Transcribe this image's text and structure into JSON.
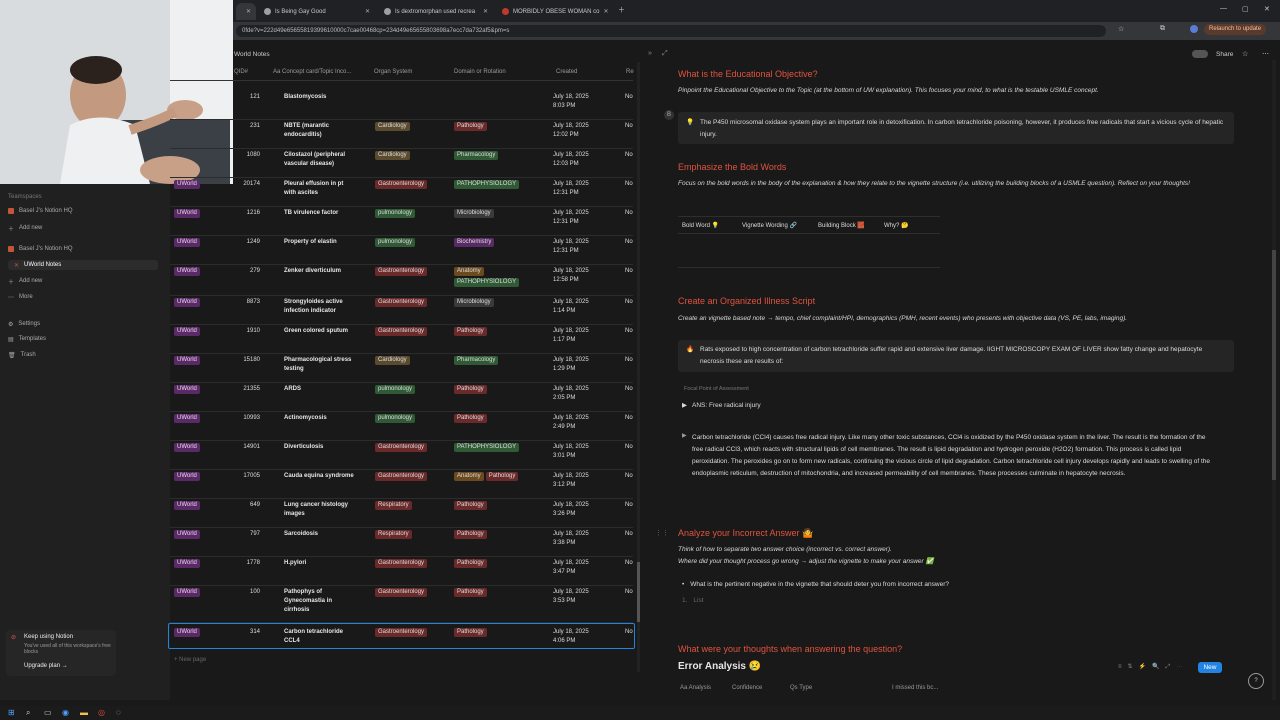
{
  "browser": {
    "tabs": [
      {
        "label": "Is Being Gay Good"
      },
      {
        "label": "Is dextromorphan used recrea"
      },
      {
        "label": "MORBIDLY OBESE WOMAN co"
      }
    ],
    "url": "0fde?v=222d49e65655819399610000c7cae00468cp=234d49e65655803698a7ecc7da732af5&pm=s",
    "relaunch": "Relaunch to update"
  },
  "sidebar": {
    "section": "Teamspaces",
    "items": [
      {
        "label": "Basel J's Notion HQ"
      },
      {
        "label": "Add new"
      },
      {
        "label": "Basel J's Notion HQ"
      },
      {
        "label": "UWorld Notes"
      },
      {
        "label": "Add new"
      },
      {
        "label": "More"
      },
      {
        "label": "Settings"
      },
      {
        "label": "Templates"
      },
      {
        "label": "Trash"
      }
    ],
    "upsell_title": "Keep using Notion",
    "upsell_text": "You've used all of this workspace's free blocks",
    "upsell_link": "Upgrade plan →"
  },
  "table": {
    "title": "World Notes",
    "headers": [
      "QID#",
      "Aa Concept card/Topic Inco...",
      "Organ System",
      "Domain or Rotation",
      "Created",
      "Re"
    ],
    "new_page": "+ New page",
    "rows": [
      {
        "src": "",
        "qid": "121",
        "card": "Blastomycosis",
        "organ": "",
        "domain": [],
        "date": "July 18, 2025 8:03 PM",
        "re": "No"
      },
      {
        "src": "",
        "qid": "231",
        "card": "NBTE (marantic endocarditis)",
        "organ": "Cardiology",
        "domain": [
          "Pathology"
        ],
        "date": "July 18, 2025 12:02 PM",
        "re": "No"
      },
      {
        "src": "",
        "qid": "1080",
        "card": "Cilostazol (peripheral vascular disease)",
        "organ": "Cardiology",
        "domain": [
          "Pharmacology"
        ],
        "date": "July 18, 2025 12:03 PM",
        "re": "No"
      },
      {
        "src": "UWorld",
        "qid": "20174",
        "card": "Pleural effusion in pt with ascites",
        "organ": "Gastroenterology",
        "domain": [
          "PATHOPHYSIOLOGY"
        ],
        "date": "July 18, 2025 12:31 PM",
        "re": "No"
      },
      {
        "src": "UWorld",
        "qid": "1216",
        "card": "TB virulence factor",
        "organ": "pulmonology",
        "domain": [
          "Microbiology"
        ],
        "date": "July 18, 2025 12:31 PM",
        "re": "No"
      },
      {
        "src": "UWorld",
        "qid": "1249",
        "card": "Property of elastin",
        "organ": "pulmonology",
        "domain": [
          "Biochemistry"
        ],
        "date": "July 18, 2025 12:31 PM",
        "re": "No"
      },
      {
        "src": "UWorld",
        "qid": "279",
        "card": "Zenker diverticulum",
        "organ": "Gastroenterology",
        "domain": [
          "Anatomy",
          "PATHOPHYSIOLOGY"
        ],
        "date": "July 18, 2025 12:58 PM",
        "re": "No"
      },
      {
        "src": "UWorld",
        "qid": "8873",
        "card": "Strongyloides active infection indicator",
        "organ": "Gastroenterology",
        "domain": [
          "Microbiology"
        ],
        "date": "July 18, 2025 1:14 PM",
        "re": "No"
      },
      {
        "src": "UWorld",
        "qid": "1910",
        "card": "Green colored sputum",
        "organ": "Gastroenterology",
        "domain": [
          "Pathology"
        ],
        "date": "July 18, 2025 1:17 PM",
        "re": "No"
      },
      {
        "src": "UWorld",
        "qid": "15180",
        "card": "Pharmacological stress testing",
        "organ": "Cardiology",
        "domain": [
          "Pharmacology"
        ],
        "date": "July 18, 2025 1:29 PM",
        "re": "No"
      },
      {
        "src": "UWorld",
        "qid": "21355",
        "card": "ARDS",
        "organ": "pulmonology",
        "domain": [
          "Pathology"
        ],
        "date": "July 18, 2025 2:05 PM",
        "re": "No"
      },
      {
        "src": "UWorld",
        "qid": "10993",
        "card": "Actinomycosis",
        "organ": "pulmonology",
        "domain": [
          "Pathology"
        ],
        "date": "July 18, 2025 2:49 PM",
        "re": "No"
      },
      {
        "src": "UWorld",
        "qid": "14901",
        "card": "Diverticulosis",
        "organ": "Gastroenterology",
        "domain": [
          "PATHOPHYSIOLOGY"
        ],
        "date": "July 18, 2025 3:01 PM",
        "re": "No"
      },
      {
        "src": "UWorld",
        "qid": "17005",
        "card": "Cauda equina syndrome",
        "organ": "Gastroenterology",
        "domain": [
          "Anatomy",
          "Pathology"
        ],
        "date": "July 18, 2025 3:12 PM",
        "re": "No"
      },
      {
        "src": "UWorld",
        "qid": "649",
        "card": "Lung cancer histology images",
        "organ": "Respiratory",
        "domain": [
          "Pathology"
        ],
        "date": "July 18, 2025 3:26 PM",
        "re": "No"
      },
      {
        "src": "UWorld",
        "qid": "797",
        "card": "Sarcoidosis",
        "organ": "Respiratory",
        "domain": [
          "Pathology"
        ],
        "date": "July 18, 2025 3:38 PM",
        "re": "No"
      },
      {
        "src": "UWorld",
        "qid": "1778",
        "card": "H.pylori",
        "organ": "Gastroenterology",
        "domain": [
          "Pathology"
        ],
        "date": "July 18, 2025 3:47 PM",
        "re": "No"
      },
      {
        "src": "UWorld",
        "qid": "100",
        "card": "Pathophys of Gynecomastia in cirrhosis",
        "organ": "Gastroenterology",
        "domain": [
          "Pathology"
        ],
        "date": "July 18, 2025 3:53 PM",
        "re": "No"
      },
      {
        "src": "UWorld",
        "qid": "314",
        "card": "Carbon tetrachloride CCL4",
        "organ": "Gastroenterology",
        "domain": [
          "Pathology"
        ],
        "date": "July 18, 2025 4:06 PM",
        "re": "No"
      }
    ]
  },
  "colors": {
    "Cardiology": "#5a4a2e",
    "Gastroenterology": "#6b2a2a",
    "pulmonology": "#2f5a35",
    "Respiratory": "#6b2a2a",
    "Pathology": "#6b2a2a",
    "Pharmacology": "#2f5a35",
    "PATHOPHYSIOLOGY": "#2f5a35",
    "Microbiology": "#3a3a3a",
    "Biochemistry": "#5a2a66",
    "Anatomy": "#6b4a1f"
  },
  "doc": {
    "topbar_share": "Share",
    "edu_heading": "What is the Educational Objective?",
    "edu_sub": "Pinpoint the Educational Objective to the Topic (at the bottom of UW explanation). This focuses your mind, to what is the testable USMLE concept.",
    "edu_callout": "The P450 microsomal oxidase system plays an important role in detoxification. In carbon tetrachloride poisoning, however, it produces free radicals that start a vicious cycle of hepatic injury.",
    "bold_heading": "Emphasize the Bold Words",
    "bold_sub": "Focus on the bold words in the body of the explanation & how they relate to the vignette structure (i.e. utilizing the building blocks of a USMLE question). Reflect on your thoughts!",
    "bold_cols": [
      "Bold Word 💡",
      "Vignette Wording 🔗",
      "Building Block 🧱",
      "Why? 🤔"
    ],
    "illness_heading": "Create an Organized Illness Script",
    "illness_sub": "Create an vignette based note → tempo, chief complaint/HPI, demographics (PMH, recent events) who presents with objective data (VS, PE, labs, imaging).",
    "illness_callout": "Rats exposed to high concentration of carbon tetrachloride suffer rapid and extensive liver damage. lIGHT MICROSCOPY EXAM OF LIVER show fatty change and hepatocyte necrosis these are results of:",
    "focal_label": "Focal Point of Assessment",
    "ans_toggle": "ANS: Free radical injury",
    "explanation": "Carbon tetrachloride (CCl4) causes free radical injury. Like many other toxic substances, CCl4 is oxidized by the P450 oxidase system in the liver. The result is the formation of the free radical CCl3, which reacts with structural lipids of cell membranes. The result is lipid degradation and hydrogen peroxide (H2O2) formation. This process is called lipid peroxidation. The peroxides go on to form new radicals, continuing the vicious circle of lipid degradation. Carbon tetrachloride cell injury develops rapidly and leads to swelling of the endoplasmic reticulum, destruction of mitochondria, and increased permeability of cell membranes. These processes culminate in hepatocyte necrosis.",
    "incorrect_heading": "Analyze your Incorrect Answer 🤷",
    "incorrect_sub1": "Think of how to separate two answer choice (incorrect vs. correct answer).",
    "incorrect_sub2": "Where did your thought process go wrong → adjust the vignette to make your answer ✅",
    "bullet": "What is the pertinent negative in the vignette that should deter you from incorrect answer?",
    "list_placeholder": "List",
    "thoughts_heading": "What were your thoughts when answering the question?",
    "error_heading": "Error Analysis 😢",
    "error_cols": [
      "Aa Analysis",
      "Confidence",
      "Qs Type",
      "I missed this bc..."
    ],
    "new_btn": "New"
  }
}
